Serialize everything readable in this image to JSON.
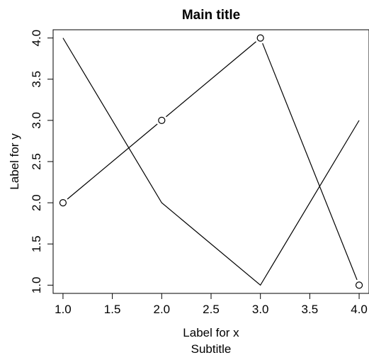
{
  "chart_data": {
    "type": "line",
    "title": "Main title",
    "subtitle": "Subtitle",
    "xlabel": "Label for x",
    "ylabel": "Label for y",
    "xlim": [
      0.9,
      4.1
    ],
    "ylim": [
      0.9,
      4.1
    ],
    "x_ticks": [
      "1.0",
      "1.5",
      "2.0",
      "2.5",
      "3.0",
      "3.5",
      "4.0"
    ],
    "y_ticks": [
      "1.0",
      "1.5",
      "2.0",
      "2.5",
      "3.0",
      "3.5",
      "4.0"
    ],
    "grid": false,
    "series": [
      {
        "x": [
          1,
          2,
          3,
          4
        ],
        "y": [
          2,
          3,
          4,
          1
        ],
        "style": "line-with-points",
        "color": "#000000"
      },
      {
        "x": [
          1,
          2,
          3,
          4
        ],
        "y": [
          4,
          2,
          1,
          3
        ],
        "style": "line",
        "color": "#000000"
      }
    ]
  }
}
